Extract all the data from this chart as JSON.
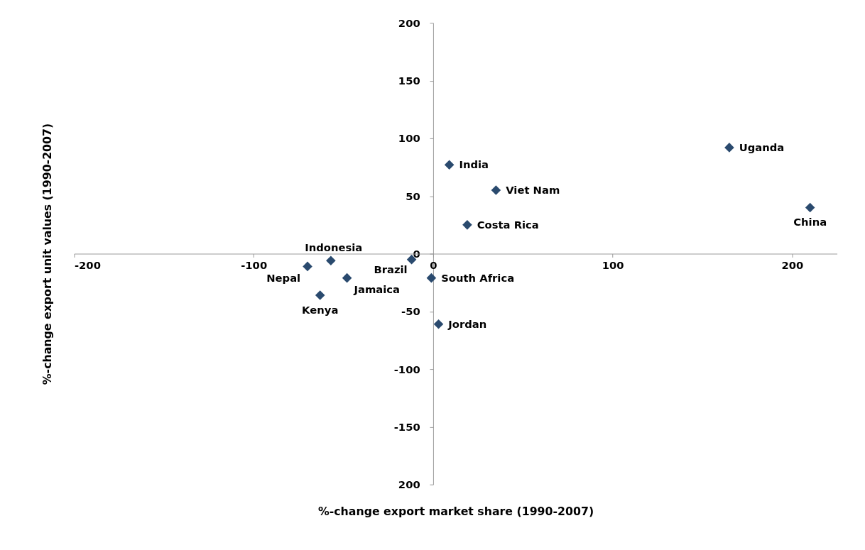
{
  "chart_data": {
    "type": "scatter",
    "xlabel": "%-change export market share (1990-2007)",
    "ylabel": "%-change export unit values (1990-2007)",
    "series": [
      {
        "color": "#2a4a6e",
        "x": [
          165,
          210,
          9,
          35,
          19,
          -57,
          -70,
          -48,
          -63,
          -12,
          -1,
          3
        ],
        "values": [
          92,
          40,
          77,
          55,
          25,
          -6,
          -11,
          -21,
          -36,
          -5,
          -21,
          -61
        ],
        "value_labels": [
          "Uganda",
          "China",
          "India",
          "Viet Nam",
          "Costa Rica",
          "Indonesia",
          "Nepal",
          "Jamaica",
          "Kenya",
          "Brazil",
          "South Africa",
          "Jordan"
        ]
      }
    ],
    "xlim": [
      -200,
      225
    ],
    "xticks": [
      -200,
      -100,
      0,
      100,
      200
    ],
    "ylim": [
      -200,
      200
    ],
    "yticks": [
      {
        "value": -200,
        "label": "200"
      },
      -150,
      -100,
      -50,
      0,
      50,
      100,
      150,
      200
    ],
    "marker": "diamond",
    "grid": false
  }
}
